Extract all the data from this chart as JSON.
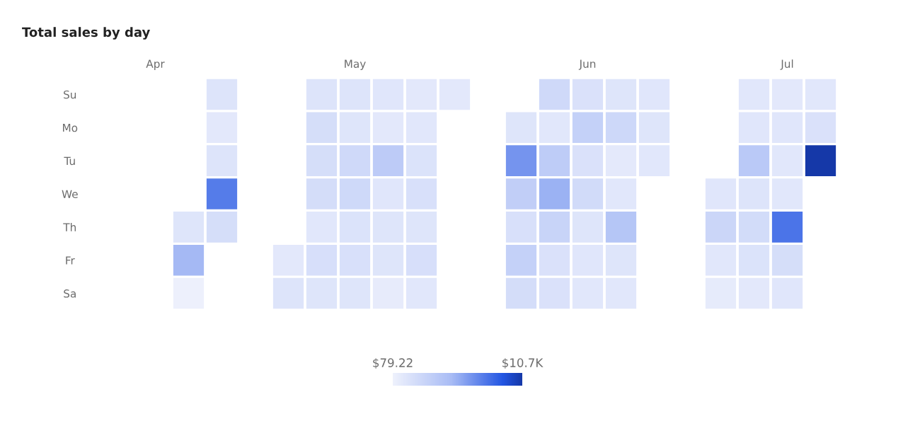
{
  "chart_data": {
    "type": "heatmap",
    "title": "Total sales by day",
    "categories": [
      "Apr",
      null,
      null,
      null,
      null,
      null,
      "May",
      null,
      null,
      null,
      null,
      null,
      null,
      "Jun",
      null,
      null,
      null,
      null,
      null,
      "Jul",
      null
    ],
    "y_categories": [
      "Su",
      "Mo",
      "Tu",
      "We",
      "Th",
      "Fr",
      "Sa"
    ],
    "cells": [
      [
        null,
        null,
        1300,
        null,
        null,
        1300,
        1300,
        1100,
        900,
        900,
        null,
        null,
        2200,
        1500,
        1200,
        1100,
        null,
        null,
        1000,
        900,
        1000
      ],
      [
        null,
        null,
        900,
        null,
        null,
        1800,
        1200,
        900,
        1000,
        null,
        null,
        1200,
        1000,
        3000,
        2400,
        1200,
        null,
        null,
        1100,
        1100,
        1500
      ],
      [
        null,
        null,
        1300,
        null,
        null,
        1800,
        2200,
        3500,
        1400,
        null,
        null,
        6500,
        3400,
        1500,
        800,
        1000,
        null,
        null,
        3700,
        1000,
        10700
      ],
      [
        null,
        null,
        7500,
        null,
        null,
        1900,
        2300,
        1100,
        1600,
        null,
        null,
        3200,
        5300,
        2100,
        1000,
        null,
        null,
        1100,
        1300,
        1000,
        null
      ],
      [
        null,
        1200,
        1800,
        null,
        null,
        1000,
        1400,
        1200,
        1200,
        null,
        null,
        1600,
        2700,
        1200,
        4000,
        null,
        null,
        2500,
        2000,
        7800,
        null
      ],
      [
        null,
        5000,
        null,
        null,
        900,
        1700,
        1600,
        1200,
        1700,
        null,
        null,
        3000,
        1500,
        1100,
        1200,
        null,
        null,
        1000,
        1400,
        1800,
        null
      ],
      [
        null,
        200,
        null,
        null,
        1300,
        1200,
        1200,
        600,
        1000,
        null,
        null,
        1900,
        1500,
        1000,
        1000,
        null,
        null,
        700,
        900,
        1100,
        null
      ]
    ],
    "clim": [
      79.22,
      10700
    ],
    "cticks": [
      {
        "value": 79.22,
        "label": "$79.22"
      },
      {
        "value": 10700,
        "label": "$10.7K"
      }
    ]
  }
}
